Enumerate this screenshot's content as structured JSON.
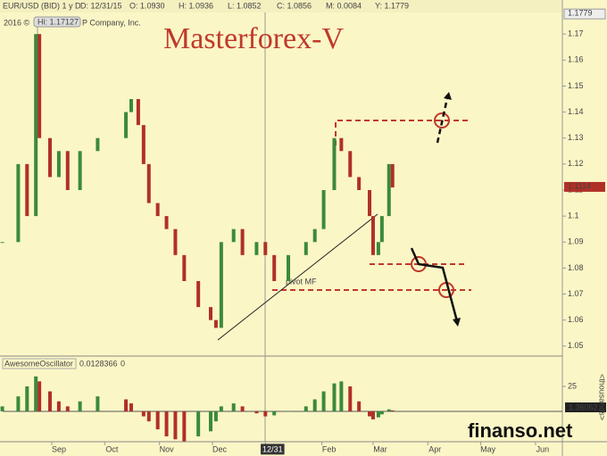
{
  "chart_data": [
    {
      "type": "candlestick",
      "title": "Masterforex-V",
      "symbol": "EUR/USD (BID) 1 y D",
      "ohlc_labels": [
        "D: 12/31/15",
        "O: 1.0930",
        "H: 1.0936",
        "L: 1.0852",
        "C: 1.0856",
        "M: 0.0084",
        "Y: 1.1779"
      ],
      "hi_label": "Hi: 1.17127",
      "copyright": [
        "2016 ©",
        "P Company, Inc."
      ],
      "annotation": "pivot MF",
      "top_price": 1.1779,
      "last_price": 1.1114,
      "x": [
        3,
        12,
        17,
        22,
        24,
        30,
        35,
        40,
        47,
        57,
        73,
        76,
        80,
        83,
        86,
        91,
        96,
        101,
        106,
        114,
        121,
        124,
        127,
        134,
        139,
        147,
        152,
        157,
        165,
        175,
        180,
        185,
        191,
        195,
        200,
        205,
        211,
        213,
        216,
        218,
        222,
        224
      ],
      "values": [
        1.09,
        1.12,
        1.1,
        1.17,
        1.13,
        1.115,
        1.125,
        1.11,
        1.125,
        1.13,
        1.14,
        1.145,
        1.135,
        1.12,
        1.105,
        1.1,
        1.095,
        1.085,
        1.075,
        1.065,
        1.06,
        1.057,
        1.09,
        1.095,
        1.085,
        1.09,
        1.085,
        1.075,
        1.085,
        1.09,
        1.095,
        1.11,
        1.13,
        1.125,
        1.115,
        1.11,
        1.1,
        1.085,
        1.09,
        1.1,
        1.12,
        1.111
      ],
      "up_color": "#3b8a3b",
      "down_color": "#b03028",
      "xlim": [
        3.2,
        320.2
      ],
      "ylim": [
        1.0465,
        1.1783
      ],
      "yticks": [
        1.05,
        1.06,
        1.07,
        1.08,
        1.09,
        1.1,
        1.11,
        1.12,
        1.13,
        1.14,
        1.15,
        1.16,
        1.17
      ]
    },
    {
      "type": "bar",
      "title": "AwesomeOscillator",
      "value_label": "0.0128366",
      "param": "0",
      "side_label": "1.36062",
      "axis_label": "<thousands>",
      "x": [
        3,
        12,
        17,
        22,
        24,
        30,
        35,
        40,
        47,
        57,
        73,
        76,
        80,
        83,
        86,
        91,
        96,
        101,
        106,
        114,
        121,
        124,
        127,
        134,
        139,
        147,
        152,
        157,
        165,
        175,
        180,
        185,
        191,
        195,
        200,
        205,
        211,
        213,
        216,
        218,
        222,
        224
      ],
      "values": [
        5,
        15,
        25,
        35,
        30,
        20,
        10,
        5,
        10,
        15,
        12,
        8,
        0,
        -5,
        -10,
        -18,
        -25,
        -28,
        -30,
        -25,
        -20,
        -10,
        5,
        8,
        5,
        -2,
        -5,
        -4,
        0,
        5,
        12,
        20,
        28,
        30,
        25,
        10,
        -5,
        -8,
        -6,
        -3,
        2,
        1
      ],
      "up_color": "#3b8a3b",
      "down_color": "#b03028",
      "xlim": [
        3.2,
        320.2
      ],
      "ylim": [
        -30.4,
        43.75
      ],
      "yticks": [
        25
      ],
      "xticks": [
        {
          "value": 31,
          "label": "Sep"
        },
        {
          "value": 61,
          "label": "Oct"
        },
        {
          "value": 92,
          "label": "Nov"
        },
        {
          "value": 122,
          "label": "Dec"
        },
        {
          "value": 152,
          "label": "12/31"
        },
        {
          "value": 184,
          "label": "Feb"
        },
        {
          "value": 213,
          "label": "Mar"
        },
        {
          "value": 244,
          "label": "Apr"
        },
        {
          "value": 274,
          "label": "May"
        },
        {
          "value": 305,
          "label": "Jun"
        }
      ]
    }
  ],
  "watermark": "finanso.net"
}
